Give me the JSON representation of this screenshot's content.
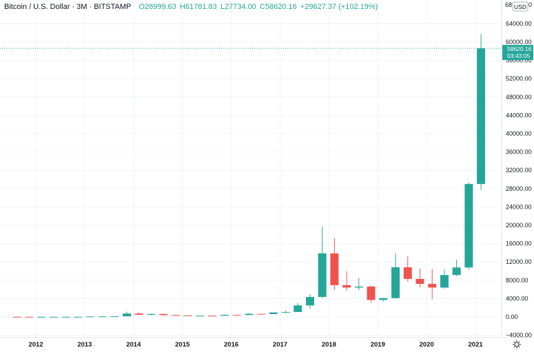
{
  "legend": {
    "symbol": "Bitcoin / U.S. Dollar · 3M · BITSTAMP",
    "open": "O28999.63",
    "high": "H61781.83",
    "low": "L27734.00",
    "close": "C58620.16",
    "change": "+29627.37 (+102.19%)"
  },
  "price_scale": {
    "currency": "USD",
    "top_label": "68",
    "menu_label": "0"
  },
  "last_price": {
    "value": 58620.16,
    "label": "58620.16",
    "countdown": "03:43:05"
  },
  "colors": {
    "up": "#26a69a",
    "down": "#ef5350",
    "grid": "#f0f3fa",
    "text": "#131722"
  },
  "chart_data": {
    "type": "candlestick",
    "title": "",
    "xlabel": "",
    "ylabel": "",
    "ylim": [
      -5000,
      68000
    ],
    "grid": true,
    "x_ticks": [
      "2012",
      "2013",
      "2014",
      "2015",
      "2016",
      "2017",
      "2018",
      "2019",
      "2020",
      "2021"
    ],
    "y_ticks": [
      -4000,
      0,
      4000,
      8000,
      12000,
      16000,
      20000,
      24000,
      28000,
      32000,
      36000,
      40000,
      44000,
      48000,
      52000,
      56000,
      60000,
      64000
    ],
    "y_tick_labels": [
      "−4000.00",
      "0.00",
      "4000.00",
      "8000.00",
      "12000.00",
      "16000.00",
      "20000.00",
      "24000.00",
      "28000.00",
      "32000.00",
      "36000.00",
      "40000.00",
      "44000.00",
      "48000.00",
      "52000.00",
      "56000.00",
      "60000.00",
      "64000.00"
    ],
    "candles": [
      {
        "x": "2011 Q3",
        "o": 13,
        "h": 15,
        "l": 5,
        "c": 5
      },
      {
        "x": "2011 Q4",
        "o": 5,
        "h": 6,
        "l": 2,
        "c": 4.7
      },
      {
        "x": "2012 Q1",
        "o": 4.7,
        "h": 7,
        "l": 4,
        "c": 4.9
      },
      {
        "x": "2012 Q2",
        "o": 4.9,
        "h": 7,
        "l": 4.6,
        "c": 6.7
      },
      {
        "x": "2012 Q3",
        "o": 6.7,
        "h": 15,
        "l": 6.5,
        "c": 12.4
      },
      {
        "x": "2012 Q4",
        "o": 12.4,
        "h": 14,
        "l": 9.6,
        "c": 13.5
      },
      {
        "x": "2013 Q1",
        "o": 13.5,
        "h": 95,
        "l": 12.5,
        "c": 93
      },
      {
        "x": "2013 Q2",
        "o": 93,
        "h": 266,
        "l": 50,
        "c": 97
      },
      {
        "x": "2013 Q3",
        "o": 97,
        "h": 142,
        "l": 65,
        "c": 125
      },
      {
        "x": "2013 Q4",
        "o": 125,
        "h": 1163,
        "l": 120,
        "c": 730
      },
      {
        "x": "2014 Q1",
        "o": 730,
        "h": 1000,
        "l": 400,
        "c": 450
      },
      {
        "x": "2014 Q2",
        "o": 450,
        "h": 680,
        "l": 340,
        "c": 637
      },
      {
        "x": "2014 Q3",
        "o": 637,
        "h": 660,
        "l": 270,
        "c": 386
      },
      {
        "x": "2014 Q4",
        "o": 386,
        "h": 460,
        "l": 275,
        "c": 320
      },
      {
        "x": "2015 Q1",
        "o": 320,
        "h": 320,
        "l": 152,
        "c": 244
      },
      {
        "x": "2015 Q2",
        "o": 244,
        "h": 265,
        "l": 215,
        "c": 263
      },
      {
        "x": "2015 Q3",
        "o": 263,
        "h": 316,
        "l": 200,
        "c": 236
      },
      {
        "x": "2015 Q4",
        "o": 236,
        "h": 500,
        "l": 235,
        "c": 430
      },
      {
        "x": "2016 Q1",
        "o": 430,
        "h": 460,
        "l": 350,
        "c": 415
      },
      {
        "x": "2016 Q2",
        "o": 415,
        "h": 780,
        "l": 415,
        "c": 670
      },
      {
        "x": "2016 Q3",
        "o": 670,
        "h": 680,
        "l": 470,
        "c": 608
      },
      {
        "x": "2016 Q4",
        "o": 608,
        "h": 980,
        "l": 590,
        "c": 963
      },
      {
        "x": "2017 Q1",
        "o": 963,
        "h": 1350,
        "l": 750,
        "c": 1070
      },
      {
        "x": "2017 Q2",
        "o": 1070,
        "h": 3000,
        "l": 1060,
        "c": 2500
      },
      {
        "x": "2017 Q3",
        "o": 2500,
        "h": 4980,
        "l": 1830,
        "c": 4340
      },
      {
        "x": "2017 Q4",
        "o": 4340,
        "h": 19666,
        "l": 4150,
        "c": 13860
      },
      {
        "x": "2018 Q1",
        "o": 13860,
        "h": 17180,
        "l": 5920,
        "c": 6930
      },
      {
        "x": "2018 Q2",
        "o": 6930,
        "h": 9990,
        "l": 5750,
        "c": 6400
      },
      {
        "x": "2018 Q3",
        "o": 6400,
        "h": 8500,
        "l": 5850,
        "c": 6625
      },
      {
        "x": "2018 Q4",
        "o": 6625,
        "h": 6800,
        "l": 3120,
        "c": 3690
      },
      {
        "x": "2019 Q1",
        "o": 3690,
        "h": 4100,
        "l": 3350,
        "c": 4100
      },
      {
        "x": "2019 Q2",
        "o": 4100,
        "h": 13880,
        "l": 4050,
        "c": 10820
      },
      {
        "x": "2019 Q3",
        "o": 10820,
        "h": 13190,
        "l": 7700,
        "c": 8290
      },
      {
        "x": "2019 Q4",
        "o": 8290,
        "h": 10540,
        "l": 6425,
        "c": 7200
      },
      {
        "x": "2020 Q1",
        "o": 7200,
        "h": 10500,
        "l": 3850,
        "c": 6400
      },
      {
        "x": "2020 Q2",
        "o": 6400,
        "h": 10400,
        "l": 6150,
        "c": 9135
      },
      {
        "x": "2020 Q3",
        "o": 9135,
        "h": 12470,
        "l": 8900,
        "c": 10780
      },
      {
        "x": "2020 Q4",
        "o": 10780,
        "h": 29300,
        "l": 10370,
        "c": 28999.63
      },
      {
        "x": "2021 Q1",
        "o": 28999.63,
        "h": 61781.83,
        "l": 27734,
        "c": 58620.16
      }
    ]
  }
}
